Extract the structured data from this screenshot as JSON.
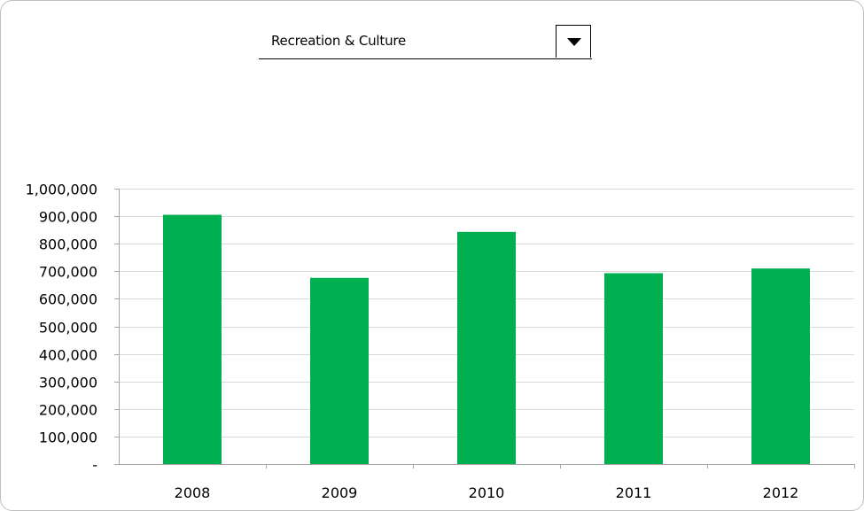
{
  "selector": {
    "value": "Recreation & Culture",
    "button_icon": "caret-down-icon"
  },
  "colors": {
    "bar": "#00b050",
    "grid": "#d9d9d9",
    "axis": "#a6a6a6",
    "text": "#000000"
  },
  "chart_data": {
    "type": "bar",
    "categories": [
      "2008",
      "2009",
      "2010",
      "2011",
      "2012"
    ],
    "values": [
      905000,
      676000,
      843000,
      693000,
      710000
    ],
    "ylim": [
      0,
      1000000
    ],
    "ytick_values": [
      0,
      100000,
      200000,
      300000,
      400000,
      500000,
      600000,
      700000,
      800000,
      900000,
      1000000
    ],
    "ytick_labels": [
      "-",
      "100,000",
      "200,000",
      "300,000",
      "400,000",
      "500,000",
      "600,000",
      "700,000",
      "800,000",
      "900,000",
      "1,000,000"
    ],
    "grid": true,
    "legend": false
  }
}
